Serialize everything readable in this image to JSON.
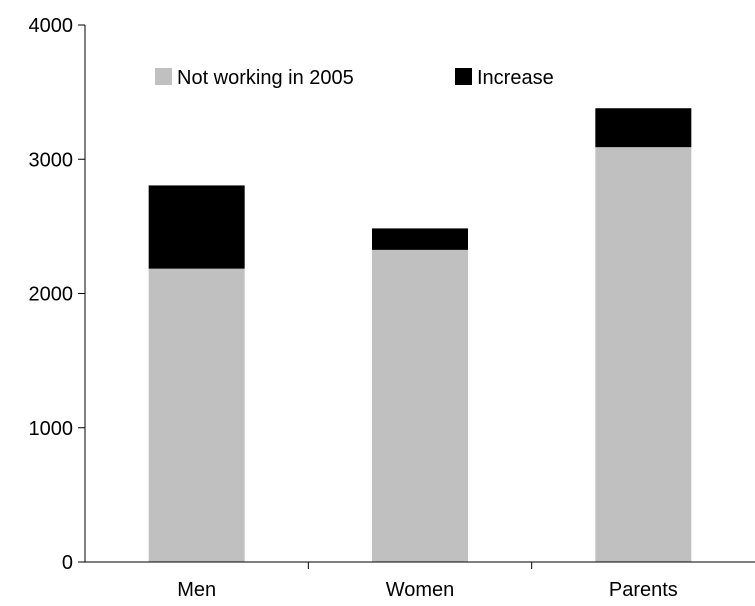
{
  "chart_data": {
    "type": "bar",
    "stacked": true,
    "categories": [
      "Men",
      "Women",
      "Parents"
    ],
    "series": [
      {
        "name": "Not working in 2005",
        "values": [
          2185,
          2325,
          3090
        ],
        "color": "#c0c0c0"
      },
      {
        "name": "Increase",
        "values": [
          620,
          160,
          290
        ],
        "color": "#000000"
      }
    ],
    "title": "",
    "xlabel": "",
    "ylabel": "",
    "ylim": [
      0,
      4000
    ],
    "yticks": [
      "0",
      "1000",
      "2000",
      "3000",
      "4000"
    ],
    "grid": false,
    "legend_position": "top"
  }
}
